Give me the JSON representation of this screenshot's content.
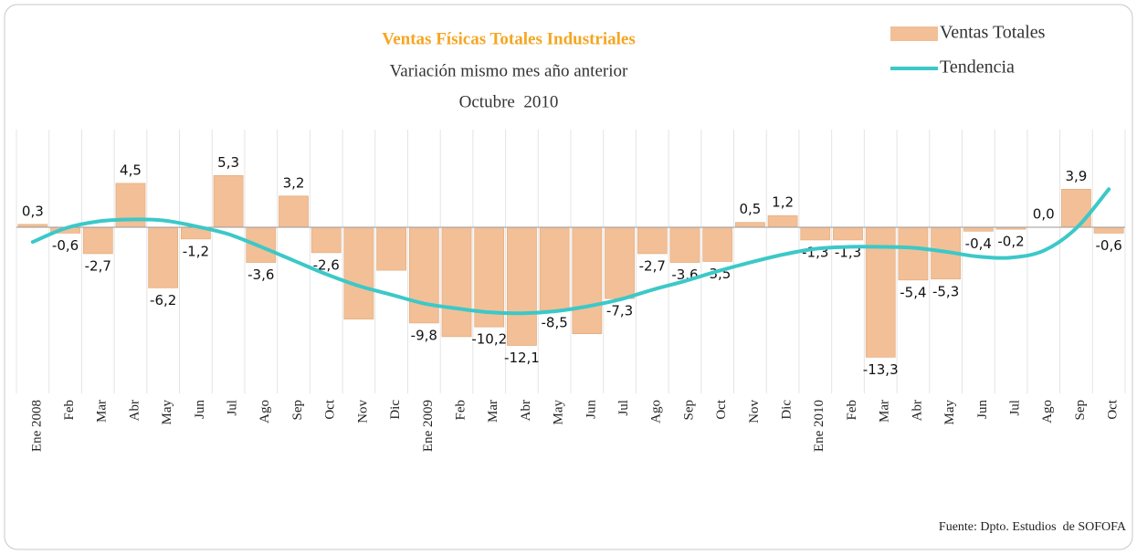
{
  "chart_data": {
    "type": "bar",
    "title": "Ventas Físicas Totales Industriales",
    "subtitle": [
      "Variación mismo mes año anterior",
      "Octubre  2010"
    ],
    "source": "Fuente: Dpto. Estudios  de SOFOFA",
    "categories": [
      "Ene 2008",
      "Feb",
      "Mar",
      "Abr",
      "May",
      "Jun",
      "Jul",
      "Ago",
      "Sep",
      "Oct",
      "Nov",
      "Dic",
      "Ene 2009",
      "Feb",
      "Mar",
      "Abr",
      "May",
      "Jun",
      "Jul",
      "Ago",
      "Sep",
      "Oct",
      "Nov",
      "Dic",
      "Ene 2010",
      "Feb",
      "Mar",
      "Abr",
      "May",
      "Jun",
      "Jul",
      "Ago",
      "Sep",
      "Oct"
    ],
    "ylim": [
      -17,
      10
    ],
    "legend": "top-right",
    "series": [
      {
        "name": "Ventas Totales",
        "type": "bar",
        "color": "#f2bf96",
        "values": [
          0.3,
          -0.6,
          -2.7,
          4.5,
          -6.2,
          -1.2,
          5.3,
          -3.6,
          3.2,
          -2.6,
          -9.4,
          -4.4,
          -9.8,
          -11.2,
          -10.2,
          -12.1,
          -8.5,
          -10.9,
          -7.3,
          -2.7,
          -3.6,
          -3.5,
          0.5,
          1.2,
          -1.3,
          -1.3,
          -13.3,
          -5.4,
          -5.3,
          -0.4,
          -0.2,
          0.0,
          3.9,
          -0.6
        ],
        "value_labels": [
          "0,3",
          "-0,6",
          "-2,7",
          "4,5",
          "-6,2",
          "-1,2",
          "5,3",
          "-3,6",
          "3,2",
          "-2,6",
          null,
          null,
          "-9,8",
          null,
          "-10,2",
          "-12,1",
          "-8,5",
          null,
          "-7,3",
          "-2,7",
          "-3,6",
          "-3,5",
          "0,5",
          "1,2",
          "-1,3",
          "-1,3",
          "-13,3",
          "-5,4",
          "-5,3",
          "-0,4",
          "-0,2",
          "0,0",
          "3,9",
          "-0,6"
        ]
      },
      {
        "name": "Tendencia",
        "type": "line",
        "color": "#3cc8c8",
        "values": [
          -1.5,
          -0.1,
          0.6,
          0.8,
          0.7,
          0.1,
          -0.7,
          -2.0,
          -3.4,
          -4.8,
          -6.0,
          -6.9,
          -7.8,
          -8.3,
          -8.7,
          -8.8,
          -8.6,
          -8.1,
          -7.4,
          -6.4,
          -5.5,
          -4.5,
          -3.6,
          -2.8,
          -2.2,
          -2.0,
          -2.0,
          -2.1,
          -2.5,
          -3.0,
          -3.1,
          -2.4,
          -0.1,
          3.9
        ]
      }
    ]
  }
}
